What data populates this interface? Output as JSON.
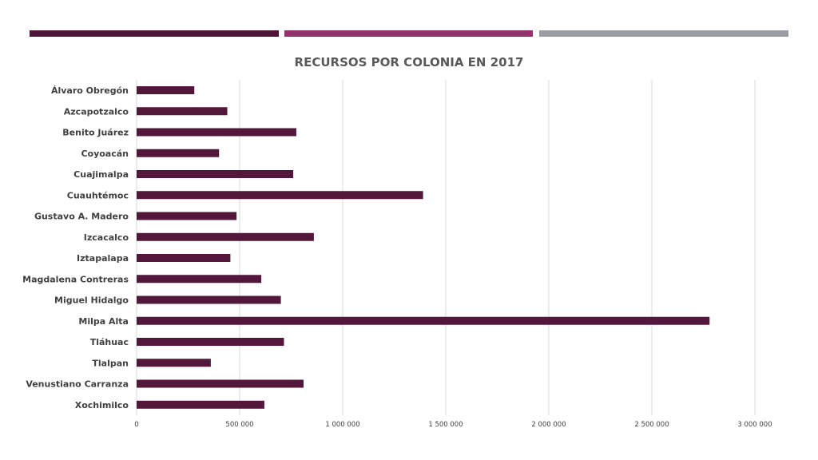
{
  "header": {
    "accent_colors": [
      "#4d1636",
      "#92336b",
      "#9a9da4"
    ]
  },
  "chart_data": {
    "type": "bar",
    "orientation": "horizontal",
    "title": "RECURSOS POR COLONIA EN 2017",
    "xlabel": "",
    "ylabel": "",
    "xlim": [
      0,
      3000000
    ],
    "grid": true,
    "bar_color": "#52173b",
    "categories": [
      "Álvaro Obregón",
      "Azcapotzalco",
      "Benito Juárez",
      "Coyoacán",
      "Cuajimalpa",
      "Cuauhtémoc",
      "Gustavo A. Madero",
      "Izcacalco",
      "Iztapalapa",
      "Magdalena Contreras",
      "Miguel Hidalgo",
      "Milpa Alta",
      "Tláhuac",
      "Tlalpan",
      "Venustiano Carranza",
      "Xochimilco"
    ],
    "values": [
      280000,
      440000,
      775000,
      400000,
      760000,
      1390000,
      485000,
      860000,
      455000,
      605000,
      700000,
      2780000,
      715000,
      360000,
      810000,
      620000
    ],
    "ticks": [
      0,
      500000,
      1000000,
      1500000,
      2000000,
      2500000,
      3000000
    ],
    "tick_labels": [
      "0",
      "500 000",
      "1 000 000",
      "1 500 000",
      "2 000 000",
      "2 500 000",
      "3 000 000"
    ]
  }
}
